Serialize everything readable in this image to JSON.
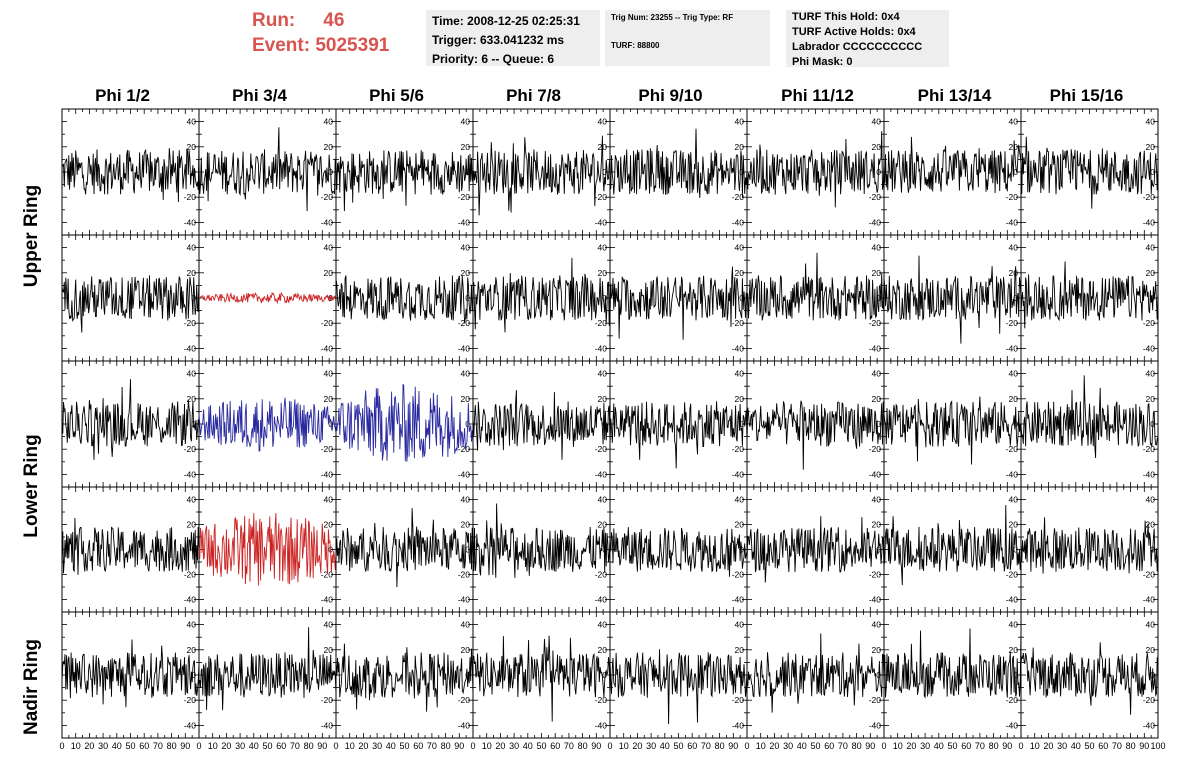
{
  "header": {
    "run_label": "Run:",
    "run_value": "46",
    "event_label": "Event:",
    "event_value": "5025391"
  },
  "time_box": {
    "time": "Time: 2008-12-25 02:25:31",
    "trigger": "Trigger: 633.041232 ms",
    "priority": "Priority: 6 -- Queue: 6"
  },
  "trig_box": {
    "trig_line": "Trig Num: 23255 -- Trig Type: RF",
    "turf_line": "TURF: 88800"
  },
  "turf_box": {
    "hold": "TURF This Hold: 0x4",
    "active": "TURF Active Holds: 0x4",
    "labrador": "Labrador CCCCCCCCCC",
    "phi_mask": "Phi Mask: 0"
  },
  "columns": [
    "Phi 1/2",
    "Phi 3/4",
    "Phi 5/6",
    "Phi 7/8",
    "Phi 9/10",
    "Phi 11/12",
    "Phi 13/14",
    "Phi 15/16"
  ],
  "rings": [
    "Upper Ring",
    "Lower Ring",
    "Nadir Ring"
  ],
  "axes": {
    "y_ticks": [
      "40",
      "20",
      "0",
      "-20",
      "-40"
    ],
    "y_range": [
      -50,
      50
    ],
    "x_ticks": [
      "0",
      "10",
      "20",
      "30",
      "40",
      "50",
      "60",
      "70",
      "80",
      "90",
      "100"
    ],
    "x_range": [
      0,
      100
    ]
  },
  "colors": {
    "header_red": "#d9534f",
    "trace_default": "#000000",
    "trace_red": "#cc2222",
    "trace_blue": "#2a2aa0",
    "info_box_bg": "#eeeeee"
  },
  "highlighted_traces": [
    {
      "row": 1,
      "col": 1,
      "color": "red",
      "amplitude": 4
    },
    {
      "row": 2,
      "col": 1,
      "color": "blue",
      "amplitude": 22
    },
    {
      "row": 2,
      "col": 2,
      "color": "blue",
      "amplitude": 32
    },
    {
      "row": 3,
      "col": 1,
      "color": "red",
      "amplitude": 30
    }
  ]
}
